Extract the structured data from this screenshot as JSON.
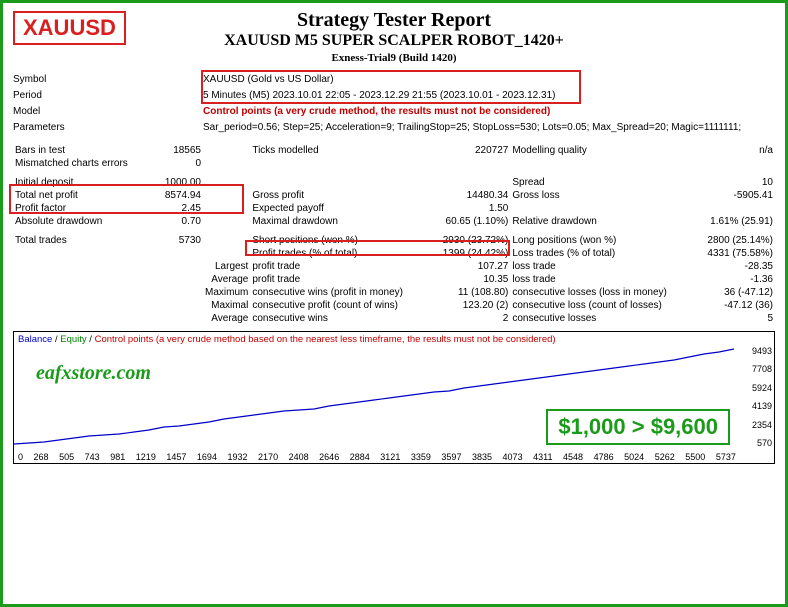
{
  "header": {
    "symbol_badge": "XAUUSD",
    "title": "Strategy Tester Report",
    "subtitle": "XAUUSD M5 SUPER SCALPER ROBOT_1420+",
    "build": "Exness-Trial9 (Build 1420)"
  },
  "info": {
    "symbol_label": "Symbol",
    "symbol_value": "XAUUSD (Gold vs US Dollar)",
    "period_label": "Period",
    "period_value": "5 Minutes (M5) 2023.10.01 22:05 - 2023.12.29 21:55 (2023.10.01 - 2023.12.31)",
    "model_label": "Model",
    "model_value": "Control points (a very crude method, the results must not be considered)",
    "params_label": "Parameters",
    "params_value": "Sar_period=0.56; Step=25; Acceleration=9; TrailingStop=25; StopLoss=530; Lots=0.05; Max_Spread=20; Magic=1111111;"
  },
  "stats": {
    "bars_in_test_l": "Bars in test",
    "bars_in_test_v": "18565",
    "ticks_l": "Ticks modelled",
    "ticks_v": "220727",
    "mq_l": "Modelling quality",
    "mq_v": "n/a",
    "mce_l": "Mismatched charts errors",
    "mce_v": "0",
    "init_dep_l": "Initial deposit",
    "init_dep_v": "1000.00",
    "spread_l": "Spread",
    "spread_v": "10",
    "tnp_l": "Total net profit",
    "tnp_v": "8574.94",
    "gp_l": "Gross profit",
    "gp_v": "14480.34",
    "gl_l": "Gross loss",
    "gl_v": "-5905.41",
    "pf_l": "Profit factor",
    "pf_v": "2.45",
    "ep_l": "Expected payoff",
    "ep_v": "1.50",
    "ad_l": "Absolute drawdown",
    "ad_v": "0.70",
    "md_l": "Maximal drawdown",
    "md_v": "60.65 (1.10%)",
    "rd_l": "Relative drawdown",
    "rd_v": "1.61% (25.91)",
    "tt_l": "Total trades",
    "tt_v": "5730",
    "sp_l": "Short positions (won %)",
    "sp_v": "2930 (23.72%)",
    "lp_l": "Long positions (won %)",
    "lp_v": "2800 (25.14%)",
    "pt_l": "Profit trades (% of total)",
    "pt_v": "1399 (24.42%)",
    "lt_l": "Loss trades (% of total)",
    "lt_v": "4331 (75.58%)",
    "largest_l": "Largest",
    "lpt_l": "profit trade",
    "lpt_v": "107.27",
    "llt_l": "loss trade",
    "llt_v": "-28.35",
    "average_l": "Average",
    "apt_l": "profit trade",
    "apt_v": "10.35",
    "alt_l": "loss trade",
    "alt_v": "-1.36",
    "maximum_l": "Maximum",
    "cw_l": "consecutive wins (profit in money)",
    "cw_v": "11 (108.80)",
    "cl_l": "consecutive losses (loss in money)",
    "cl_v": "36 (-47.12)",
    "maximal_l": "Maximal",
    "cp_l": "consecutive profit (count of wins)",
    "cp_v": "123.20 (2)",
    "clc_l": "consecutive loss (count of losses)",
    "clc_v": "-47.12 (36)",
    "average2_l": "Average",
    "acw_l": "consecutive wins",
    "acw_v": "2",
    "acl_l": "consecutive losses",
    "acl_v": "5"
  },
  "chart": {
    "legend_balance": "Balance",
    "legend_equity": "Equity",
    "legend_cp": "Control points (a very crude method based on the nearest less timeframe, the results must not be considered)",
    "watermark": "eafxstore.com",
    "gain_text": "$1,000 > $9,600",
    "y_ticks": [
      "9493",
      "7708",
      "5924",
      "4139",
      "2354",
      "570"
    ],
    "x_ticks": [
      "0",
      "268",
      "505",
      "743",
      "981",
      "1219",
      "1457",
      "1694",
      "1932",
      "2170",
      "2408",
      "2646",
      "2884",
      "3121",
      "3359",
      "3597",
      "3835",
      "4073",
      "4311",
      "4548",
      "4786",
      "5024",
      "5262",
      "5500",
      "5737"
    ],
    "line_color": "#0000c8",
    "background": "#ffffff",
    "points": [
      [
        0,
        112
      ],
      [
        15,
        111
      ],
      [
        30,
        110
      ],
      [
        45,
        108
      ],
      [
        60,
        106
      ],
      [
        75,
        104
      ],
      [
        90,
        103
      ],
      [
        105,
        102
      ],
      [
        120,
        100
      ],
      [
        135,
        98
      ],
      [
        150,
        95
      ],
      [
        165,
        94
      ],
      [
        180,
        92
      ],
      [
        195,
        90
      ],
      [
        210,
        87
      ],
      [
        225,
        85
      ],
      [
        240,
        83
      ],
      [
        255,
        81
      ],
      [
        270,
        79
      ],
      [
        285,
        78
      ],
      [
        300,
        77
      ],
      [
        315,
        74
      ],
      [
        330,
        72
      ],
      [
        345,
        70
      ],
      [
        360,
        68
      ],
      [
        375,
        66
      ],
      [
        390,
        64
      ],
      [
        405,
        62
      ],
      [
        420,
        60
      ],
      [
        435,
        59
      ],
      [
        450,
        56
      ],
      [
        465,
        54
      ],
      [
        480,
        52
      ],
      [
        495,
        50
      ],
      [
        510,
        48
      ],
      [
        525,
        46
      ],
      [
        540,
        44
      ],
      [
        555,
        42
      ],
      [
        570,
        40
      ],
      [
        585,
        38
      ],
      [
        600,
        36
      ],
      [
        615,
        34
      ],
      [
        630,
        32
      ],
      [
        645,
        30
      ],
      [
        660,
        28
      ],
      [
        675,
        25
      ],
      [
        690,
        22
      ],
      [
        705,
        20
      ],
      [
        720,
        17
      ]
    ]
  }
}
